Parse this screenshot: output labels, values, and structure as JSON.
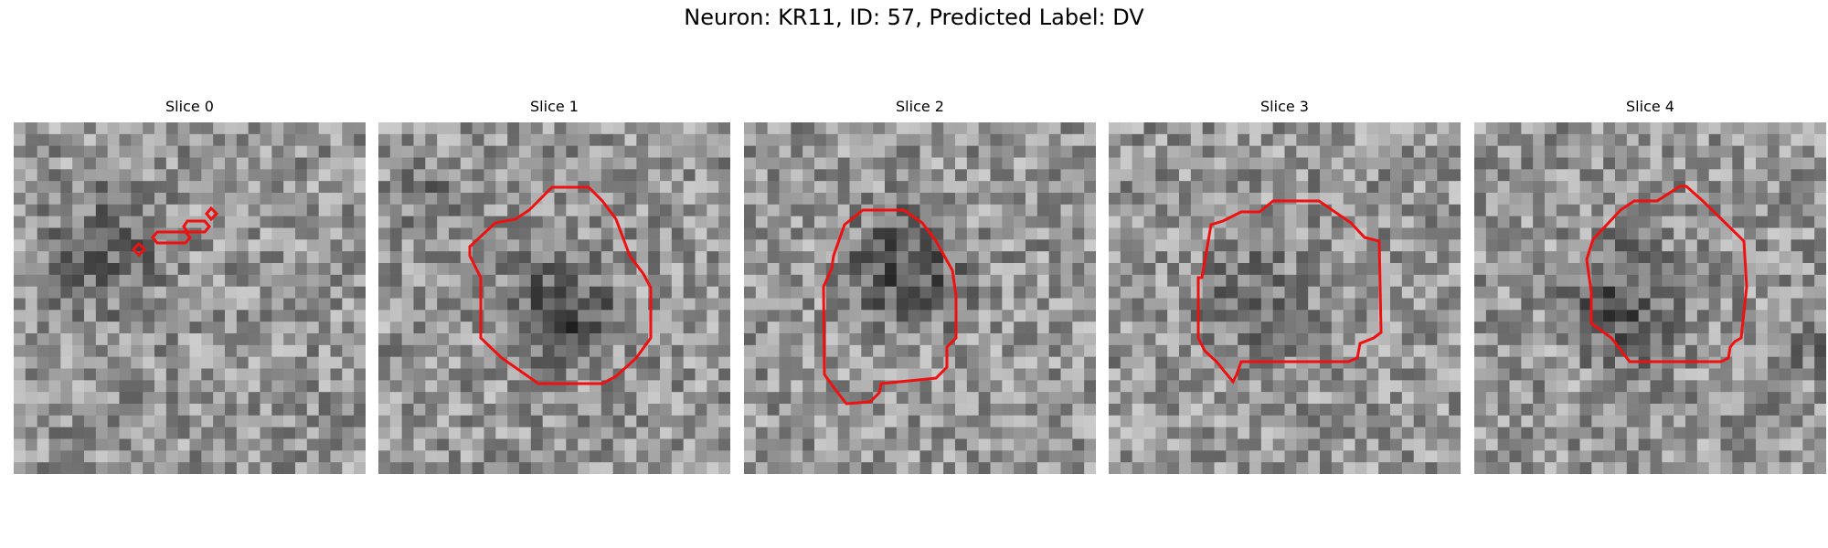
{
  "figure": {
    "title": "Neuron: KR11, ID: 57, Predicted Label: DV"
  },
  "colors": {
    "contour": "#ee1111",
    "background": "#ffffff"
  },
  "panels": [
    {
      "title": "Slice 0"
    },
    {
      "title": "Slice 1"
    },
    {
      "title": "Slice 2"
    },
    {
      "title": "Slice 3"
    },
    {
      "title": "Slice 4"
    }
  ]
}
